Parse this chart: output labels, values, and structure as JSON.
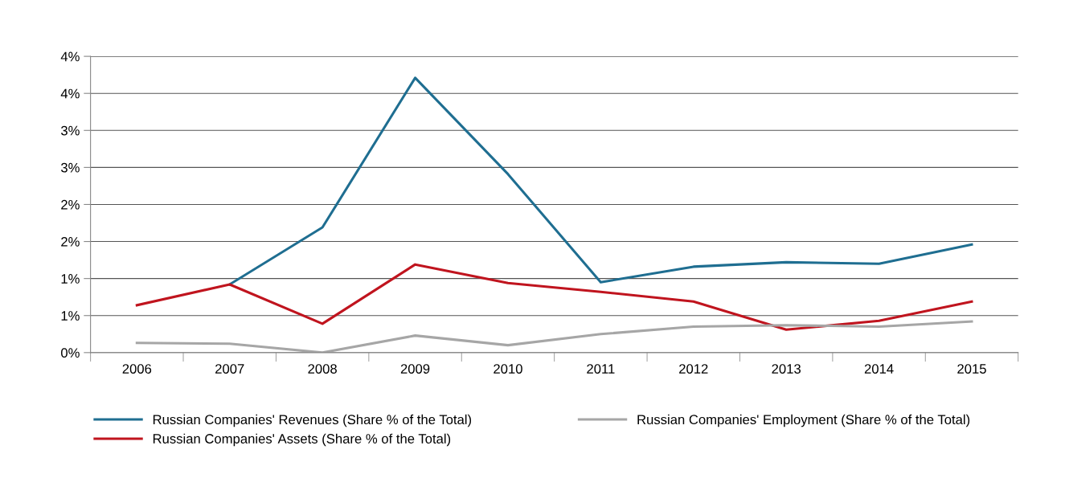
{
  "chart_data": {
    "type": "line",
    "categories": [
      "2006",
      "2007",
      "2008",
      "2009",
      "2010",
      "2011",
      "2012",
      "2013",
      "2014",
      "2015"
    ],
    "series": [
      {
        "name": "Russian Companies' Revenues (Share % of the Total)",
        "color": "#1f6e91",
        "values": [
          null,
          0.92,
          1.69,
          3.71,
          2.41,
          0.95,
          1.16,
          1.22,
          1.2,
          1.46
        ]
      },
      {
        "name": "Russian Companies' Assets (Share % of the Total)",
        "color": "#c0141e",
        "values": [
          0.64,
          0.92,
          0.39,
          1.19,
          0.94,
          0.82,
          0.69,
          0.31,
          0.43,
          0.69
        ]
      },
      {
        "name": "Russian Companies' Employment (Share % of the Total)",
        "color": "#a6a6a6",
        "values": [
          0.13,
          0.12,
          0.0,
          0.23,
          0.1,
          0.25,
          0.35,
          0.37,
          0.35,
          0.42
        ]
      }
    ],
    "ylim": [
      0,
      4
    ],
    "yticks": [
      {
        "value": 0,
        "label": "0%"
      },
      {
        "value": 0.5,
        "label": "1%"
      },
      {
        "value": 1,
        "label": "1%"
      },
      {
        "value": 1.5,
        "label": "2%"
      },
      {
        "value": 2,
        "label": "2%"
      },
      {
        "value": 2.5,
        "label": "3%"
      },
      {
        "value": 3,
        "label": "3%"
      },
      {
        "value": 3.5,
        "label": "4%"
      },
      {
        "value": 4,
        "label": "4%"
      }
    ],
    "grid": "y",
    "legend": "bottom",
    "marker": "none",
    "line_style": "solid"
  }
}
